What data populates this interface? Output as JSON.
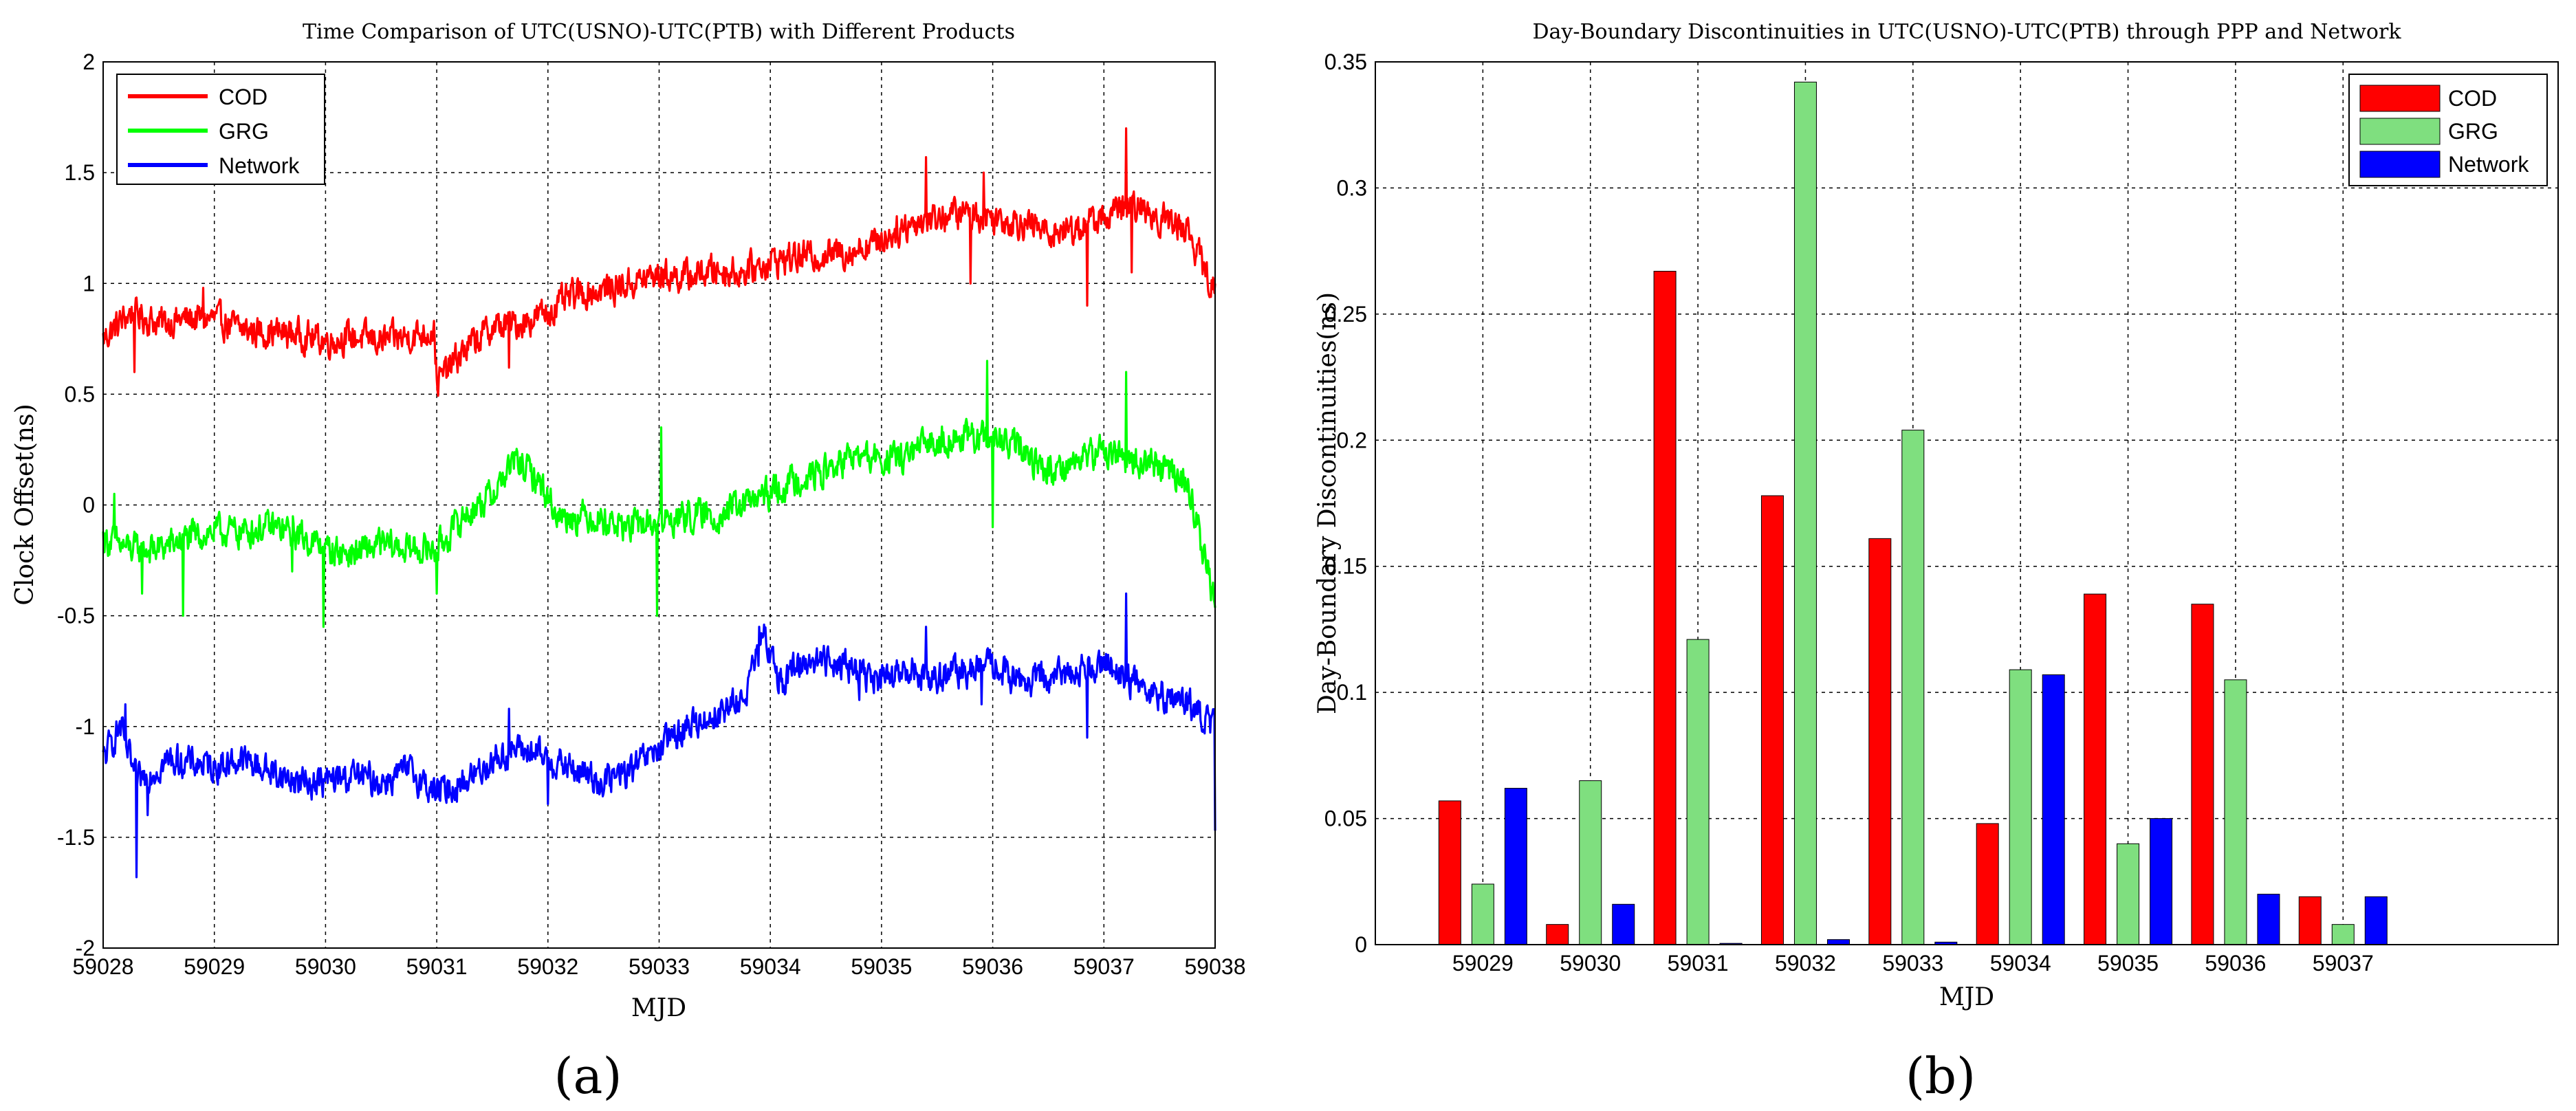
{
  "panels": {
    "a": "(a)",
    "b": "(b)"
  },
  "chart_data": [
    {
      "type": "line",
      "title": "Time Comparison of UTC(USNO)-UTC(PTB) with Different Products",
      "xlabel": "MJD",
      "ylabel": "Clock Offset(ns)",
      "xlim": [
        59028,
        59038
      ],
      "ylim": [
        -2,
        2
      ],
      "xticks": [
        "59028",
        "59029",
        "59030",
        "59031",
        "59032",
        "59033",
        "59034",
        "59035",
        "59036",
        "59037",
        "59038"
      ],
      "yticks": [
        "-2",
        "-1.5",
        "-1",
        "-0.5",
        "0",
        "0.5",
        "1",
        "1.5",
        "2"
      ],
      "grid": true,
      "legend_position": "top-left",
      "legend": [
        "COD",
        "GRG",
        "Network"
      ],
      "colors": [
        "#ff0000",
        "#00ff00",
        "#0000ff"
      ],
      "series": [
        {
          "name": "COD",
          "x": [
            59028,
            59028.25,
            59028.5,
            59028.75,
            59029,
            59029.25,
            59029.5,
            59029.75,
            59030,
            59030.25,
            59030.5,
            59030.75,
            59030.98,
            59031.0,
            59031.25,
            59031.5,
            59031.75,
            59032,
            59032.25,
            59032.5,
            59032.75,
            59033,
            59033.25,
            59033.5,
            59033.75,
            59034,
            59034.25,
            59034.5,
            59034.75,
            59035,
            59035.25,
            59035.5,
            59035.75,
            59036,
            59036.25,
            59036.5,
            59036.75,
            59037,
            59037.25,
            59037.5,
            59037.75,
            59038
          ],
          "values": [
            0.75,
            0.87,
            0.82,
            0.84,
            0.84,
            0.79,
            0.78,
            0.77,
            0.74,
            0.76,
            0.74,
            0.76,
            0.79,
            0.55,
            0.7,
            0.8,
            0.82,
            0.87,
            0.95,
            0.97,
            1.0,
            1.04,
            1.03,
            1.06,
            1.05,
            1.1,
            1.12,
            1.13,
            1.15,
            1.2,
            1.27,
            1.3,
            1.32,
            1.3,
            1.28,
            1.23,
            1.25,
            1.3,
            1.35,
            1.3,
            1.25,
            0.95
          ],
          "spikes": [
            [
              59028.28,
              0.6
            ],
            [
              59028.9,
              0.98
            ],
            [
              59031.65,
              0.62
            ],
            [
              59035.4,
              1.57
            ],
            [
              59035.8,
              1.0
            ],
            [
              59035.92,
              1.5
            ],
            [
              59036.85,
              0.9
            ],
            [
              59037.2,
              1.7
            ],
            [
              59037.25,
              1.05
            ]
          ]
        },
        {
          "name": "GRG",
          "x": [
            59028,
            59028.25,
            59028.5,
            59028.75,
            59029,
            59029.25,
            59029.5,
            59029.75,
            59030,
            59030.25,
            59030.5,
            59030.75,
            59031,
            59031.25,
            59031.5,
            59031.7,
            59031.9,
            59032.1,
            59032.4,
            59032.7,
            59033,
            59033.25,
            59033.5,
            59033.75,
            59034,
            59034.25,
            59034.5,
            59034.75,
            59035,
            59035.25,
            59035.5,
            59035.75,
            59036,
            59036.25,
            59036.5,
            59036.75,
            59037,
            59037.25,
            59037.5,
            59037.75,
            59038
          ],
          "values": [
            -0.15,
            -0.2,
            -0.2,
            -0.15,
            -0.12,
            -0.12,
            -0.1,
            -0.13,
            -0.2,
            -0.22,
            -0.18,
            -0.2,
            -0.2,
            -0.05,
            0.05,
            0.2,
            0.12,
            -0.05,
            -0.05,
            -0.1,
            -0.08,
            -0.05,
            -0.05,
            0.0,
            0.05,
            0.12,
            0.15,
            0.22,
            0.2,
            0.22,
            0.3,
            0.3,
            0.3,
            0.25,
            0.15,
            0.2,
            0.25,
            0.2,
            0.18,
            0.1,
            -0.45
          ],
          "spikes": [
            [
              59028.1,
              0.05
            ],
            [
              59028.35,
              -0.4
            ],
            [
              59028.72,
              -0.5
            ],
            [
              59029.7,
              -0.3
            ],
            [
              59029.98,
              -0.55
            ],
            [
              59031.0,
              -0.4
            ],
            [
              59032.98,
              -0.5
            ],
            [
              59033.02,
              0.35
            ],
            [
              59035.95,
              0.65
            ],
            [
              59036.0,
              -0.1
            ],
            [
              59037.2,
              0.6
            ]
          ]
        },
        {
          "name": "Network",
          "x": [
            59028,
            59028.15,
            59028.3,
            59028.6,
            59029,
            59029.25,
            59029.5,
            59029.75,
            59030,
            59030.25,
            59030.5,
            59030.75,
            59031,
            59031.25,
            59031.5,
            59031.75,
            59032,
            59032.25,
            59032.5,
            59032.75,
            59033,
            59033.25,
            59033.5,
            59033.75,
            59033.95,
            59034.1,
            59034.3,
            59034.6,
            59034.8,
            59035,
            59035.25,
            59035.5,
            59035.75,
            59036,
            59036.25,
            59036.5,
            59036.75,
            59037,
            59037.25,
            59037.5,
            59037.75,
            59038
          ],
          "values": [
            -1.15,
            -1.0,
            -1.25,
            -1.15,
            -1.18,
            -1.15,
            -1.2,
            -1.25,
            -1.25,
            -1.22,
            -1.25,
            -1.2,
            -1.3,
            -1.25,
            -1.15,
            -1.1,
            -1.15,
            -1.2,
            -1.25,
            -1.2,
            -1.1,
            -1.0,
            -0.95,
            -0.88,
            -0.6,
            -0.8,
            -0.7,
            -0.7,
            -0.75,
            -0.8,
            -0.75,
            -0.78,
            -0.75,
            -0.72,
            -0.8,
            -0.78,
            -0.75,
            -0.7,
            -0.8,
            -0.85,
            -0.9,
            -1.0
          ],
          "spikes": [
            [
              59028.2,
              -0.9
            ],
            [
              59028.3,
              -1.68
            ],
            [
              59028.4,
              -1.4
            ],
            [
              59031.65,
              -0.92
            ],
            [
              59032.0,
              -1.35
            ],
            [
              59033.9,
              -0.55
            ],
            [
              59034.8,
              -0.88
            ],
            [
              59035.4,
              -0.55
            ],
            [
              59035.9,
              -0.9
            ],
            [
              59036.85,
              -1.05
            ],
            [
              59037.2,
              -0.4
            ],
            [
              59038.0,
              -1.47
            ]
          ]
        }
      ]
    },
    {
      "type": "bar",
      "title": "Day-Boundary Discontinuities in UTC(USNO)-UTC(PTB) through PPP and Network",
      "xlabel": "MJD",
      "ylabel": "Day-Boundary Discontinuities(ns)",
      "ylim": [
        0,
        0.35
      ],
      "yticks": [
        "0",
        "0.05",
        "0.1",
        "0.15",
        "0.2",
        "0.25",
        "0.3",
        "0.35"
      ],
      "grid": true,
      "legend_position": "top-right",
      "categories": [
        "59029",
        "59030",
        "59031",
        "59032",
        "59033",
        "59034",
        "59035",
        "59036",
        "59037"
      ],
      "colors": [
        "#ff0000",
        "#7fdf7f",
        "#0000ff"
      ],
      "series": [
        {
          "name": "COD",
          "values": [
            0.057,
            0.008,
            0.267,
            0.178,
            0.161,
            0.048,
            0.139,
            0.135,
            0.019
          ]
        },
        {
          "name": "GRG",
          "values": [
            0.024,
            0.065,
            0.121,
            0.342,
            0.204,
            0.109,
            0.04,
            0.105,
            0.008
          ]
        },
        {
          "name": "Network",
          "values": [
            0.062,
            0.016,
            0.0005,
            0.002,
            0.001,
            0.107,
            0.05,
            0.02,
            0.019
          ]
        }
      ]
    }
  ]
}
